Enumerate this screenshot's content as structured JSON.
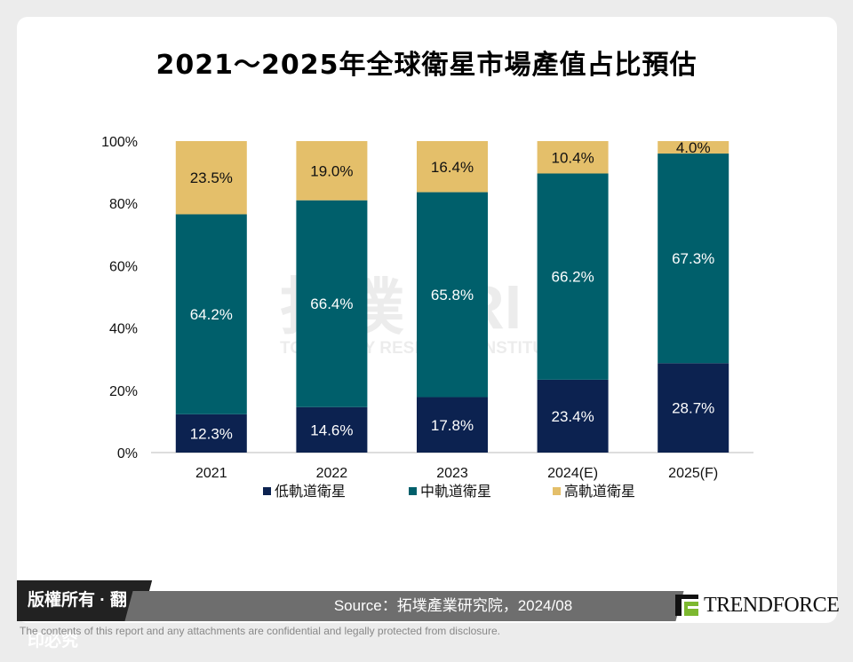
{
  "title": "2021～2025年全球衛星市場產值占比預估",
  "chart_data": {
    "type": "bar",
    "stacked": true,
    "title": "2021～2025年全球衛星市場產值占比預估",
    "categories": [
      "2021",
      "2022",
      "2023",
      "2024(E)",
      "2025(F)"
    ],
    "series": [
      {
        "name": "低軌道衛星",
        "color": "#0c2250",
        "values": [
          12.3,
          14.6,
          17.8,
          23.4,
          28.7
        ],
        "labels": [
          "12.3%",
          "14.6%",
          "17.8%",
          "23.4%",
          "28.7%"
        ]
      },
      {
        "name": "中軌道衛星",
        "color": "#005f6b",
        "values": [
          64.2,
          66.4,
          65.8,
          66.2,
          67.3
        ],
        "labels": [
          "64.2%",
          "66.4%",
          "65.8%",
          "66.2%",
          "67.3%"
        ]
      },
      {
        "name": "高軌道衛星",
        "color": "#e4bf6a",
        "values": [
          23.5,
          19.0,
          16.4,
          10.4,
          4.0
        ],
        "labels": [
          "23.5%",
          "19.0%",
          "16.4%",
          "10.4%",
          "4.0%"
        ]
      }
    ],
    "yticks": [
      "0%",
      "20%",
      "40%",
      "60%",
      "80%",
      "100%"
    ],
    "ylim": [
      0,
      100
    ],
    "grid": false,
    "legend": "bottom"
  },
  "watermark": {
    "main": "拓墣 TRI",
    "sub": "TOPOLOGY RESEARCH INSTITUTE"
  },
  "footer": {
    "copyright": "版權所有 · 翻印必究",
    "source": "Source：拓墣產業研究院，2024/08",
    "brand": "TRENDFORCE",
    "disclaimer": "The contents of this report and any attachments are confidential and legally protected from disclosure."
  }
}
